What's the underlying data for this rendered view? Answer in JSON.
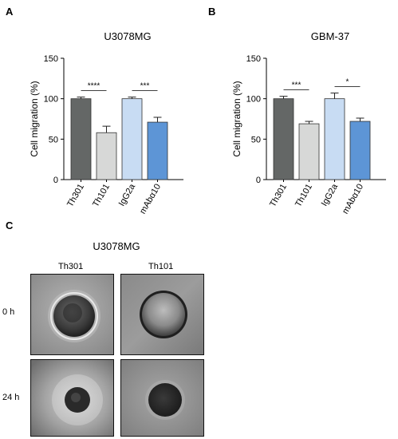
{
  "panels": {
    "a": "A",
    "b": "B",
    "c": "C"
  },
  "chart_data": [
    {
      "type": "bar",
      "title": "U3078MG",
      "xlabel": "",
      "ylabel": "Cell migration (%)",
      "ylim": [
        0,
        150
      ],
      "yticks": [
        "0",
        "50",
        "100",
        "150"
      ],
      "categories": [
        "Th301",
        "Th101",
        "IgG2a",
        "mAbα10"
      ],
      "values": [
        100,
        58,
        100,
        71
      ],
      "errors": [
        2,
        8,
        2,
        6
      ],
      "colors": [
        "#646766",
        "#d7d8d7",
        "#c8dcf3",
        "#5d95d6"
      ],
      "significance": [
        {
          "from": 0,
          "to": 1,
          "label": "****"
        },
        {
          "from": 2,
          "to": 3,
          "label": "***"
        }
      ]
    },
    {
      "type": "bar",
      "title": "GBM-37",
      "xlabel": "",
      "ylabel": "Cell migration (%)",
      "ylim": [
        0,
        150
      ],
      "yticks": [
        "0",
        "50",
        "100",
        "150"
      ],
      "categories": [
        "Th301",
        "Th101",
        "IgG2a",
        "mAbα10"
      ],
      "values": [
        100,
        69,
        100,
        72
      ],
      "errors": [
        3,
        3,
        7,
        4
      ],
      "colors": [
        "#646766",
        "#d7d8d7",
        "#c8dcf3",
        "#5d95d6"
      ],
      "significance": [
        {
          "from": 0,
          "to": 1,
          "label": "***"
        },
        {
          "from": 2,
          "to": 3,
          "label": "*"
        }
      ]
    }
  ],
  "panel_c": {
    "title": "U3078MG",
    "columns": [
      "Th301",
      "Th101"
    ],
    "rows": [
      "0 h",
      "24 h"
    ]
  }
}
